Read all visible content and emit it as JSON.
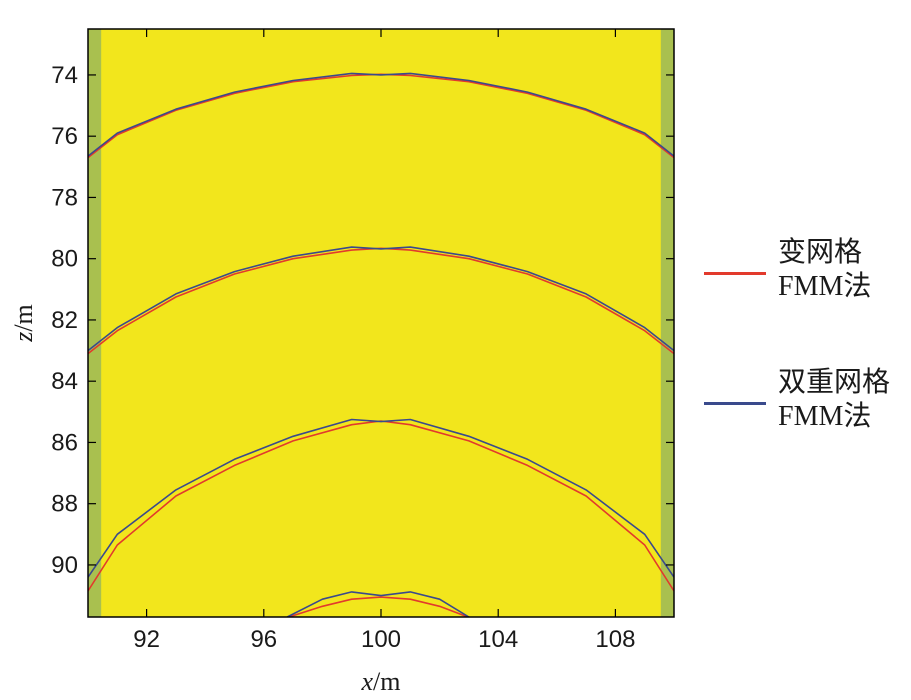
{
  "chart_data": {
    "type": "line",
    "title": "",
    "xlabel": "x/m",
    "ylabel": "z/m",
    "xlim": [
      90,
      110
    ],
    "ylim": [
      91.7,
      72.5
    ],
    "y_inverted": true,
    "x_ticks": [
      "92",
      "96",
      "100",
      "104",
      "108"
    ],
    "y_ticks": [
      "74",
      "76",
      "78",
      "80",
      "82",
      "84",
      "86",
      "88",
      "90"
    ],
    "grid": false,
    "legend_position": "right",
    "background": {
      "field_color": "#f2e61c",
      "edge_color": "#a9c04f",
      "edge_columns_x": [
        [
          90,
          90.45
        ],
        [
          109.55,
          110
        ]
      ]
    },
    "series": [
      {
        "name": "变网格FMM法",
        "color": "#e23a2c",
        "curves": [
          {
            "x": [
              90,
              91,
              93,
              95,
              97,
              99,
              100,
              101,
              103,
              105,
              107,
              109,
              110
            ],
            "y": [
              76.7,
              75.95,
              75.15,
              74.6,
              74.22,
              74.02,
              73.98,
              74.02,
              74.22,
              74.6,
              75.15,
              75.95,
              76.7
            ]
          },
          {
            "x": [
              90,
              91,
              93,
              95,
              97,
              99,
              100,
              101,
              103,
              105,
              107,
              109,
              110
            ],
            "y": [
              83.1,
              82.35,
              81.25,
              80.5,
              80.0,
              79.72,
              79.66,
              79.72,
              80.0,
              80.5,
              81.25,
              82.35,
              83.1
            ]
          },
          {
            "x": [
              90,
              91,
              93,
              95,
              97,
              99,
              100,
              101,
              103,
              105,
              107,
              109,
              110
            ],
            "y": [
              90.85,
              89.35,
              87.75,
              86.75,
              85.95,
              85.42,
              85.3,
              85.42,
              85.95,
              86.75,
              87.75,
              89.35,
              90.85
            ]
          },
          {
            "x": [
              96.7,
              98,
              99,
              100,
              101,
              102,
              103.1
            ],
            "y": [
              91.75,
              91.35,
              91.12,
              91.05,
              91.12,
              91.35,
              91.75
            ]
          }
        ]
      },
      {
        "name": "双重网格FMM法",
        "color": "#3a4a8c",
        "curves": [
          {
            "x": [
              90,
              91,
              93,
              95,
              97,
              99,
              100,
              101,
              103,
              105,
              107,
              109,
              110
            ],
            "y": [
              76.65,
              75.9,
              75.12,
              74.56,
              74.18,
              73.95,
              74.0,
              73.95,
              74.18,
              74.56,
              75.12,
              75.9,
              76.65
            ]
          },
          {
            "x": [
              90,
              91,
              93,
              95,
              97,
              99,
              100,
              101,
              103,
              105,
              107,
              109,
              110
            ],
            "y": [
              83.0,
              82.25,
              81.15,
              80.42,
              79.92,
              79.62,
              79.68,
              79.62,
              79.92,
              80.42,
              81.15,
              82.25,
              83.0
            ]
          },
          {
            "x": [
              90,
              91,
              93,
              95,
              97,
              99,
              100,
              101,
              103,
              105,
              107,
              109,
              110
            ],
            "y": [
              90.4,
              89.0,
              87.55,
              86.55,
              85.8,
              85.25,
              85.32,
              85.25,
              85.8,
              86.55,
              87.55,
              89.0,
              90.4
            ]
          },
          {
            "x": [
              96.8,
              98,
              99,
              100,
              101,
              102,
              103.0
            ],
            "y": [
              91.7,
              91.12,
              90.88,
              91.0,
              90.88,
              91.12,
              91.7
            ]
          }
        ]
      }
    ]
  },
  "legend": {
    "item1_line1": "变网格",
    "item1_line2": "FMM法",
    "item2_line1": "双重网格",
    "item2_line2": "FMM法"
  }
}
